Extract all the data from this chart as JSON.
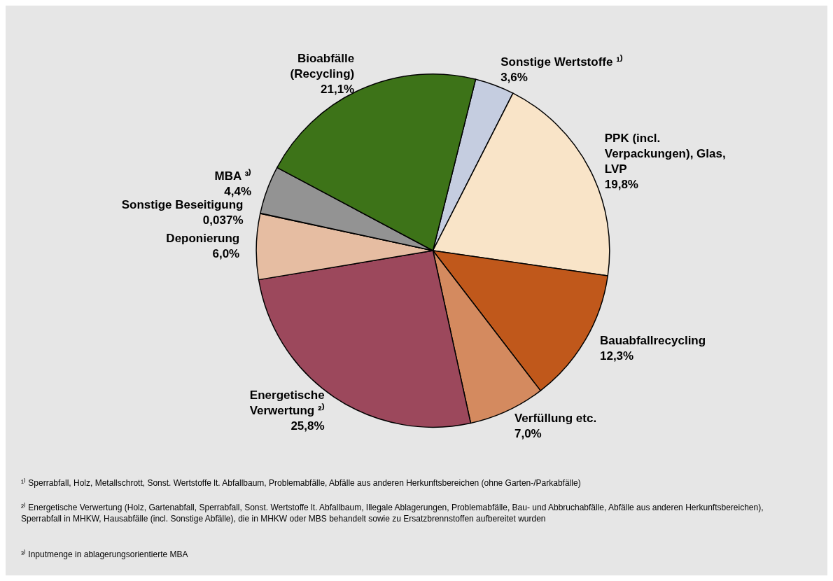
{
  "chart_data": {
    "type": "pie",
    "categories": [
      "Sonstige Wertstoffe ¹⁾",
      "PPK (incl. Verpackungen), Glas, LVP",
      "Bauabfallrecycling",
      "Verfüllung etc.",
      "Energetische Verwertung ²⁾",
      "Deponierung",
      "Sonstige Beseitigung",
      "MBA ³⁾",
      "Bioabfälle (Recycling)"
    ],
    "values": [
      3.6,
      19.8,
      12.3,
      7.0,
      25.8,
      6.0,
      0.037,
      4.4,
      21.1
    ],
    "value_labels": [
      "3,6%",
      "19,8%",
      "12,3%",
      "7,0%",
      "25,8%",
      "6,0%",
      "0,037%",
      "4,4%",
      "21,1%"
    ],
    "colors": [
      "#c5cde0",
      "#f9e4c8",
      "#c0581b",
      "#d48a5f",
      "#9c485c",
      "#e6bda2",
      "#7a7a7a",
      "#939393",
      "#3d7318"
    ],
    "annotations": [
      "¹⁾ Sperrabfall, Holz, Metallschrott, Sonst. Wertstoffe lt. Abfallbaum, Problemabfälle, Abfälle aus anderen Herkunftsbereichen (ohne Garten-/Parkabfälle)",
      "²⁾ Energetische Verwertung (Holz, Gartenabfall, Sperrabfall, Sonst. Wertstoffe lt. Abfallbaum, Illegale Ablagerungen, Problemabfälle, Bau- und Abbruchabfälle, Abfälle aus anderen Herkunftsbereichen), Sperrabfall in MHKW, Hausabfälle (incl. Sonstige Abfälle), die in MHKW oder MBS behandelt sowie zu Ersatzbrennstoffen aufbereitet wurden",
      "³⁾ Inputmenge in ablagerungsorientierte MBA"
    ]
  }
}
